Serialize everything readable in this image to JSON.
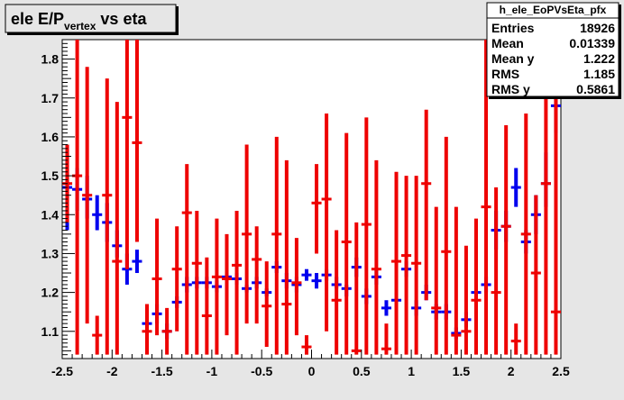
{
  "title": {
    "main": "ele E/P",
    "sub": "vertex",
    "suffix": " vs eta"
  },
  "stats": {
    "name": "h_ele_EoPVsEta_pfx",
    "rows": [
      {
        "label": "Entries",
        "value": "18926"
      },
      {
        "label": "Mean",
        "value": "0.01339"
      },
      {
        "label": "Mean y",
        "value": "1.222"
      },
      {
        "label": "RMS",
        "value": "1.185"
      },
      {
        "label": "RMS y",
        "value": "0.5861"
      }
    ]
  },
  "colors": {
    "frame": "#000000",
    "background": "#e6e6e6",
    "plot_bg": "#ffffff",
    "blue": "#0000ee",
    "red": "#ee0000"
  },
  "chart_data": {
    "type": "scatter",
    "xlim": [
      -2.5,
      2.5
    ],
    "ylim": [
      1.03,
      1.85
    ],
    "grid": false,
    "legend": "top-right",
    "x_ticks": [
      "-2.5",
      "-2",
      "-1.5",
      "-1",
      "-0.5",
      "0",
      "0.5",
      "1",
      "1.5",
      "2",
      "2.5"
    ],
    "y_ticks": [
      "1.1",
      "1.2",
      "1.3",
      "1.4",
      "1.5",
      "1.6",
      "1.7",
      "1.8"
    ],
    "series": [
      {
        "color": "blue",
        "bin_width": 0.1,
        "points": [
          {
            "x": -2.45,
            "y": 1.47,
            "lo": 1.36,
            "hi": 1.58
          },
          {
            "x": -2.35,
            "y": 1.465,
            "lo": 1.41,
            "hi": 1.52
          },
          {
            "x": -2.25,
            "y": 1.44,
            "lo": 1.39,
            "hi": 1.5
          },
          {
            "x": -2.15,
            "y": 1.4,
            "lo": 1.36,
            "hi": 1.45
          },
          {
            "x": -2.05,
            "y": 1.38,
            "lo": 1.33,
            "hi": 1.43
          },
          {
            "x": -1.95,
            "y": 1.32,
            "lo": 1.29,
            "hi": 1.36
          },
          {
            "x": -1.85,
            "y": 1.26,
            "lo": 1.22,
            "hi": 1.3
          },
          {
            "x": -1.75,
            "y": 1.28,
            "lo": 1.25,
            "hi": 1.31
          },
          {
            "x": -1.65,
            "y": 1.12,
            "lo": 1.11,
            "hi": 1.14
          },
          {
            "x": -1.55,
            "y": 1.145,
            "lo": 1.12,
            "hi": 1.17
          },
          {
            "x": -1.45,
            "y": 1.1,
            "lo": 1.08,
            "hi": 1.12
          },
          {
            "x": -1.35,
            "y": 1.175,
            "lo": 1.16,
            "hi": 1.19
          },
          {
            "x": -1.25,
            "y": 1.22,
            "lo": 1.2,
            "hi": 1.24
          },
          {
            "x": -1.15,
            "y": 1.225,
            "lo": 1.21,
            "hi": 1.24
          },
          {
            "x": -1.05,
            "y": 1.225,
            "lo": 1.21,
            "hi": 1.24
          },
          {
            "x": -0.95,
            "y": 1.215,
            "lo": 1.2,
            "hi": 1.23
          },
          {
            "x": -0.85,
            "y": 1.24,
            "lo": 1.23,
            "hi": 1.25
          },
          {
            "x": -0.75,
            "y": 1.235,
            "lo": 1.22,
            "hi": 1.25
          },
          {
            "x": -0.65,
            "y": 1.21,
            "lo": 1.2,
            "hi": 1.22
          },
          {
            "x": -0.55,
            "y": 1.225,
            "lo": 1.21,
            "hi": 1.24
          },
          {
            "x": -0.45,
            "y": 1.2,
            "lo": 1.19,
            "hi": 1.21
          },
          {
            "x": -0.35,
            "y": 1.265,
            "lo": 1.25,
            "hi": 1.28
          },
          {
            "x": -0.25,
            "y": 1.23,
            "lo": 1.21,
            "hi": 1.25
          },
          {
            "x": -0.15,
            "y": 1.22,
            "lo": 1.2,
            "hi": 1.24
          },
          {
            "x": -0.05,
            "y": 1.245,
            "lo": 1.23,
            "hi": 1.26
          },
          {
            "x": 0.05,
            "y": 1.23,
            "lo": 1.21,
            "hi": 1.25
          },
          {
            "x": 0.15,
            "y": 1.245,
            "lo": 1.23,
            "hi": 1.26
          },
          {
            "x": 0.25,
            "y": 1.22,
            "lo": 1.21,
            "hi": 1.24
          },
          {
            "x": 0.35,
            "y": 1.21,
            "lo": 1.19,
            "hi": 1.22
          },
          {
            "x": 0.45,
            "y": 1.265,
            "lo": 1.24,
            "hi": 1.29
          },
          {
            "x": 0.55,
            "y": 1.19,
            "lo": 1.17,
            "hi": 1.21
          },
          {
            "x": 0.65,
            "y": 1.24,
            "lo": 1.22,
            "hi": 1.26
          },
          {
            "x": 0.75,
            "y": 1.16,
            "lo": 1.14,
            "hi": 1.18
          },
          {
            "x": 0.85,
            "y": 1.18,
            "lo": 1.16,
            "hi": 1.2
          },
          {
            "x": 0.95,
            "y": 1.26,
            "lo": 1.24,
            "hi": 1.28
          },
          {
            "x": 1.05,
            "y": 1.16,
            "lo": 1.14,
            "hi": 1.18
          },
          {
            "x": 1.15,
            "y": 1.2,
            "lo": 1.18,
            "hi": 1.22
          },
          {
            "x": 1.25,
            "y": 1.15,
            "lo": 1.13,
            "hi": 1.17
          },
          {
            "x": 1.35,
            "y": 1.15,
            "lo": 1.13,
            "hi": 1.17
          },
          {
            "x": 1.45,
            "y": 1.095,
            "lo": 1.08,
            "hi": 1.11
          },
          {
            "x": 1.55,
            "y": 1.13,
            "lo": 1.11,
            "hi": 1.15
          },
          {
            "x": 1.65,
            "y": 1.2,
            "lo": 1.18,
            "hi": 1.22
          },
          {
            "x": 1.75,
            "y": 1.22,
            "lo": 1.2,
            "hi": 1.24
          },
          {
            "x": 1.85,
            "y": 1.36,
            "lo": 1.31,
            "hi": 1.41
          },
          {
            "x": 1.95,
            "y": 1.37,
            "lo": 1.33,
            "hi": 1.41
          },
          {
            "x": 2.05,
            "y": 1.47,
            "lo": 1.42,
            "hi": 1.52
          },
          {
            "x": 2.15,
            "y": 1.33,
            "lo": 1.3,
            "hi": 1.36
          },
          {
            "x": 2.25,
            "y": 1.4,
            "lo": 1.35,
            "hi": 1.45
          },
          {
            "x": 2.35,
            "y": 1.48,
            "lo": 1.42,
            "hi": 1.56
          },
          {
            "x": 2.45,
            "y": 1.68,
            "lo": 1.61,
            "hi": 1.76
          }
        ]
      },
      {
        "color": "red",
        "bin_width": 0.1,
        "points": [
          {
            "x": -2.45,
            "y": 1.48,
            "lo": 1.38,
            "hi": 1.58
          },
          {
            "x": -2.35,
            "y": 1.5,
            "lo": 1.04,
            "hi": 1.85
          },
          {
            "x": -2.25,
            "y": 1.45,
            "lo": 1.12,
            "hi": 1.78
          },
          {
            "x": -2.15,
            "y": 1.09,
            "lo": 1.04,
            "hi": 1.14
          },
          {
            "x": -2.05,
            "y": 1.45,
            "lo": 1.04,
            "hi": 1.75
          },
          {
            "x": -1.95,
            "y": 1.28,
            "lo": 1.04,
            "hi": 1.69
          },
          {
            "x": -1.85,
            "y": 1.65,
            "lo": 1.26,
            "hi": 1.85
          },
          {
            "x": -1.75,
            "y": 1.585,
            "lo": 1.33,
            "hi": 1.85
          },
          {
            "x": -1.65,
            "y": 1.1,
            "lo": 1.04,
            "hi": 1.17
          },
          {
            "x": -1.55,
            "y": 1.235,
            "lo": 1.09,
            "hi": 1.39
          },
          {
            "x": -1.45,
            "y": 1.1,
            "lo": 1.04,
            "hi": 1.16
          },
          {
            "x": -1.35,
            "y": 1.26,
            "lo": 1.1,
            "hi": 1.37
          },
          {
            "x": -1.25,
            "y": 1.405,
            "lo": 1.04,
            "hi": 1.53
          },
          {
            "x": -1.15,
            "y": 1.275,
            "lo": 1.04,
            "hi": 1.41
          },
          {
            "x": -1.05,
            "y": 1.14,
            "lo": 1.04,
            "hi": 1.29
          },
          {
            "x": -0.95,
            "y": 1.24,
            "lo": 1.04,
            "hi": 1.39
          },
          {
            "x": -0.85,
            "y": 1.235,
            "lo": 1.09,
            "hi": 1.35
          },
          {
            "x": -0.75,
            "y": 1.27,
            "lo": 1.04,
            "hi": 1.41
          },
          {
            "x": -0.65,
            "y": 1.35,
            "lo": 1.12,
            "hi": 1.58
          },
          {
            "x": -0.55,
            "y": 1.285,
            "lo": 1.12,
            "hi": 1.37
          },
          {
            "x": -0.45,
            "y": 1.165,
            "lo": 1.06,
            "hi": 1.28
          },
          {
            "x": -0.35,
            "y": 1.35,
            "lo": 1.04,
            "hi": 1.6
          },
          {
            "x": -0.25,
            "y": 1.17,
            "lo": 1.04,
            "hi": 1.54
          },
          {
            "x": -0.15,
            "y": 1.225,
            "lo": 1.09,
            "hi": 1.34
          },
          {
            "x": -0.05,
            "y": 1.06,
            "lo": 1.04,
            "hi": 1.09
          },
          {
            "x": 0.05,
            "y": 1.43,
            "lo": 1.3,
            "hi": 1.53
          },
          {
            "x": 0.15,
            "y": 1.44,
            "lo": 1.1,
            "hi": 1.66
          },
          {
            "x": 0.25,
            "y": 1.18,
            "lo": 1.04,
            "hi": 1.36
          },
          {
            "x": 0.35,
            "y": 1.33,
            "lo": 1.04,
            "hi": 1.61
          },
          {
            "x": 0.45,
            "y": 1.05,
            "lo": 1.04,
            "hi": 1.38
          },
          {
            "x": 0.55,
            "y": 1.375,
            "lo": 1.04,
            "hi": 1.65
          },
          {
            "x": 0.65,
            "y": 1.26,
            "lo": 1.04,
            "hi": 1.54
          },
          {
            "x": 0.75,
            "y": 1.055,
            "lo": 1.04,
            "hi": 1.12
          },
          {
            "x": 0.85,
            "y": 1.28,
            "lo": 1.04,
            "hi": 1.51
          },
          {
            "x": 0.95,
            "y": 1.295,
            "lo": 1.04,
            "hi": 1.5
          },
          {
            "x": 1.05,
            "y": 1.275,
            "lo": 1.04,
            "hi": 1.5
          },
          {
            "x": 1.15,
            "y": 1.48,
            "lo": 1.18,
            "hi": 1.67
          },
          {
            "x": 1.25,
            "y": 1.16,
            "lo": 1.04,
            "hi": 1.42
          },
          {
            "x": 1.35,
            "y": 1.305,
            "lo": 1.04,
            "hi": 1.6
          },
          {
            "x": 1.45,
            "y": 1.09,
            "lo": 1.04,
            "hi": 1.42
          },
          {
            "x": 1.55,
            "y": 1.1,
            "lo": 1.04,
            "hi": 1.32
          },
          {
            "x": 1.65,
            "y": 1.18,
            "lo": 1.04,
            "hi": 1.39
          },
          {
            "x": 1.75,
            "y": 1.42,
            "lo": 1.04,
            "hi": 1.85
          },
          {
            "x": 1.85,
            "y": 1.2,
            "lo": 1.04,
            "hi": 1.47
          },
          {
            "x": 1.95,
            "y": 1.37,
            "lo": 1.04,
            "hi": 1.63
          },
          {
            "x": 2.05,
            "y": 1.075,
            "lo": 1.04,
            "hi": 1.12
          },
          {
            "x": 2.15,
            "y": 1.35,
            "lo": 1.04,
            "hi": 1.66
          },
          {
            "x": 2.25,
            "y": 1.25,
            "lo": 1.04,
            "hi": 1.45
          },
          {
            "x": 2.35,
            "y": 1.48,
            "lo": 1.04,
            "hi": 1.85
          },
          {
            "x": 2.45,
            "y": 1.15,
            "lo": 1.04,
            "hi": 1.85
          }
        ]
      }
    ]
  }
}
